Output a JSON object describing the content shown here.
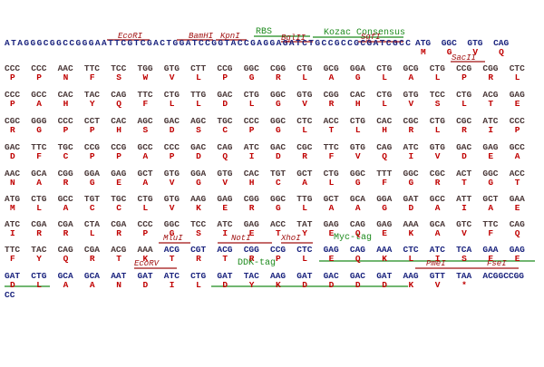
{
  "annotations": [
    {
      "label": "EcoRI",
      "kind": "site"
    },
    {
      "label": "BamHI",
      "kind": "site"
    },
    {
      "label": "KpnI",
      "kind": "site"
    },
    {
      "label": "RBS",
      "kind": "feature"
    },
    {
      "label": "BglII",
      "kind": "site"
    },
    {
      "label": "Kozac Consensus",
      "kind": "feature"
    },
    {
      "label": "SgfI",
      "kind": "site"
    },
    {
      "label": "SacII",
      "kind": "site"
    },
    {
      "label": "MluI",
      "kind": "site"
    },
    {
      "label": "NotI",
      "kind": "site"
    },
    {
      "label": "XhoI",
      "kind": "site"
    },
    {
      "label": "Myc-tag",
      "kind": "feature"
    },
    {
      "label": "EcoRV",
      "kind": "site"
    },
    {
      "label": "DDK-tag",
      "kind": "feature"
    },
    {
      "label": "PmeI",
      "kind": "site"
    },
    {
      "label": "FseI",
      "kind": "site"
    }
  ],
  "lines": [
    {
      "prefix": "ATAGGGCGGCCGGGAATTCGTCGACTGGATCCGGTACCGAGGAGATCTGCCGCCGCGATCGCC",
      "codons": [
        "ATG",
        "GGC",
        "GTG",
        "CAG"
      ],
      "protein": [
        "M",
        "G",
        "V",
        "Q"
      ]
    },
    {
      "codons": [
        "CCC",
        "CCC",
        "AAC",
        "TTC",
        "TCC",
        "TGG",
        "GTG",
        "CTT",
        "CCG",
        "GGC",
        "CGG",
        "CTG",
        "GCG",
        "GGA",
        "CTG",
        "GCG",
        "CTG",
        "CCG",
        "CGG",
        "CTC"
      ],
      "protein": [
        "P",
        "P",
        "N",
        "F",
        "S",
        "W",
        "V",
        "L",
        "P",
        "G",
        "R",
        "L",
        "A",
        "G",
        "L",
        "A",
        "L",
        "P",
        "R",
        "L"
      ]
    },
    {
      "codons": [
        "CCC",
        "GCC",
        "CAC",
        "TAC",
        "CAG",
        "TTC",
        "CTG",
        "TTG",
        "GAC",
        "CTG",
        "GGC",
        "GTG",
        "CGG",
        "CAC",
        "CTG",
        "GTG",
        "TCC",
        "CTG",
        "ACG",
        "GAG"
      ],
      "protein": [
        "P",
        "A",
        "H",
        "Y",
        "Q",
        "F",
        "L",
        "L",
        "D",
        "L",
        "G",
        "V",
        "R",
        "H",
        "L",
        "V",
        "S",
        "L",
        "T",
        "E"
      ]
    },
    {
      "codons": [
        "CGC",
        "GGG",
        "CCC",
        "CCT",
        "CAC",
        "AGC",
        "GAC",
        "AGC",
        "TGC",
        "CCC",
        "GGC",
        "CTC",
        "ACC",
        "CTG",
        "CAC",
        "CGC",
        "CTG",
        "CGC",
        "ATC",
        "CCC"
      ],
      "protein": [
        "R",
        "G",
        "P",
        "P",
        "H",
        "S",
        "D",
        "S",
        "C",
        "P",
        "G",
        "L",
        "T",
        "L",
        "H",
        "R",
        "L",
        "R",
        "I",
        "P"
      ]
    },
    {
      "codons": [
        "GAC",
        "TTC",
        "TGC",
        "CCG",
        "CCG",
        "GCC",
        "CCC",
        "GAC",
        "CAG",
        "ATC",
        "GAC",
        "CGC",
        "TTC",
        "GTG",
        "CAG",
        "ATC",
        "GTG",
        "GAC",
        "GAG",
        "GCC"
      ],
      "protein": [
        "D",
        "F",
        "C",
        "P",
        "P",
        "A",
        "P",
        "D",
        "Q",
        "I",
        "D",
        "R",
        "F",
        "V",
        "Q",
        "I",
        "V",
        "D",
        "E",
        "A"
      ]
    },
    {
      "codons": [
        "AAC",
        "GCA",
        "CGG",
        "GGA",
        "GAG",
        "GCT",
        "GTG",
        "GGA",
        "GTG",
        "CAC",
        "TGT",
        "GCT",
        "CTG",
        "GGC",
        "TTT",
        "GGC",
        "CGC",
        "ACT",
        "GGC",
        "ACC"
      ],
      "protein": [
        "N",
        "A",
        "R",
        "G",
        "E",
        "A",
        "V",
        "G",
        "V",
        "H",
        "C",
        "A",
        "L",
        "G",
        "F",
        "G",
        "R",
        "T",
        "G",
        "T"
      ]
    },
    {
      "codons": [
        "ATG",
        "CTG",
        "GCC",
        "TGT",
        "TGC",
        "CTG",
        "GTG",
        "AAG",
        "GAG",
        "CGG",
        "GGC",
        "TTG",
        "GCT",
        "GCA",
        "GGA",
        "GAT",
        "GCC",
        "ATT",
        "GCT",
        "GAA"
      ],
      "protein": [
        "M",
        "L",
        "A",
        "C",
        "C",
        "L",
        "V",
        "K",
        "E",
        "R",
        "G",
        "L",
        "A",
        "A",
        "G",
        "D",
        "A",
        "I",
        "A",
        "E"
      ]
    },
    {
      "codons": [
        "ATC",
        "CGA",
        "CGA",
        "CTA",
        "CGA",
        "CCC",
        "GGC",
        "TCC",
        "ATC",
        "GAG",
        "ACC",
        "TAT",
        "GAG",
        "CAG",
        "GAG",
        "AAA",
        "GCA",
        "GTC",
        "TTC",
        "CAG"
      ],
      "protein": [
        "I",
        "R",
        "R",
        "L",
        "R",
        "P",
        "G",
        "S",
        "I",
        "E",
        "T",
        "Y",
        "E",
        "Q",
        "E",
        "K",
        "A",
        "V",
        "F",
        "Q"
      ]
    },
    {
      "codons": [
        "TTC",
        "TAC",
        "CAG",
        "CGA",
        "ACG",
        "AAA",
        "ACG",
        "CGT",
        "ACG",
        "CGG",
        "CCG",
        "CTC",
        "GAG",
        "CAG",
        "AAA",
        "CTC",
        "ATC",
        "TCA",
        "GAA",
        "GAG"
      ],
      "protein": [
        "F",
        "Y",
        "Q",
        "R",
        "T",
        "K",
        "T",
        "R",
        "T",
        "R",
        "P",
        "L",
        "E",
        "Q",
        "K",
        "L",
        "I",
        "S",
        "E",
        "E"
      ]
    },
    {
      "codons": [
        "GAT",
        "CTG",
        "GCA",
        "GCA",
        "AAT",
        "GAT",
        "ATC",
        "CTG",
        "GAT",
        "TAC",
        "AAG",
        "GAT",
        "GAC",
        "GAC",
        "GAT",
        "AAG",
        "GTT",
        "TAA"
      ],
      "suffix": "ACGGCCGG",
      "protein": [
        "D",
        "L",
        "A",
        "A",
        "N",
        "D",
        "I",
        "L",
        "D",
        "Y",
        "K",
        "D",
        "D",
        "D",
        "D",
        "K",
        "V",
        "*"
      ]
    },
    {
      "prefix": "CC"
    }
  ]
}
